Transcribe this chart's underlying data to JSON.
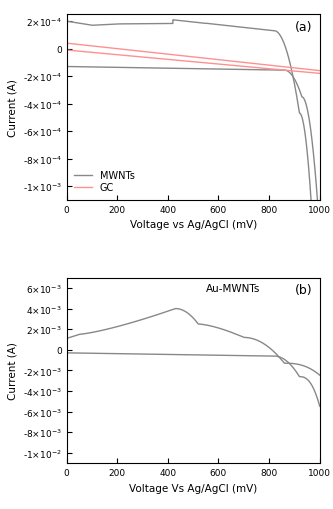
{
  "panel_a": {
    "label": "(a)",
    "xlabel": "Voltage vs Ag/AgCl (mV)",
    "ylabel": "Current (A)",
    "xlim": [
      0,
      1000
    ],
    "ylim": [
      -0.0011,
      0.00025
    ],
    "yticks": [
      0.0002,
      0,
      -0.0002,
      -0.0004,
      -0.0006,
      -0.0008,
      -0.001
    ],
    "xticks": [
      0,
      200,
      400,
      600,
      800,
      1000
    ],
    "legend": [
      "MWNTs",
      "GC"
    ],
    "mwnt_color": "#888888",
    "gc_color": "#FF9090"
  },
  "panel_b": {
    "label": "(b)",
    "xlabel": "Voltage Vs Ag/AgCl (mV)",
    "ylabel": "Current (A)",
    "xlim": [
      0,
      1000
    ],
    "ylim": [
      -0.011,
      0.007
    ],
    "yticks": [
      0.006,
      0.004,
      0.002,
      0,
      -0.002,
      -0.004,
      -0.006,
      -0.008,
      -0.01
    ],
    "xticks": [
      0,
      200,
      400,
      600,
      800,
      1000
    ],
    "annotation": "Au-MWNTs",
    "curve_color": "#888888"
  }
}
